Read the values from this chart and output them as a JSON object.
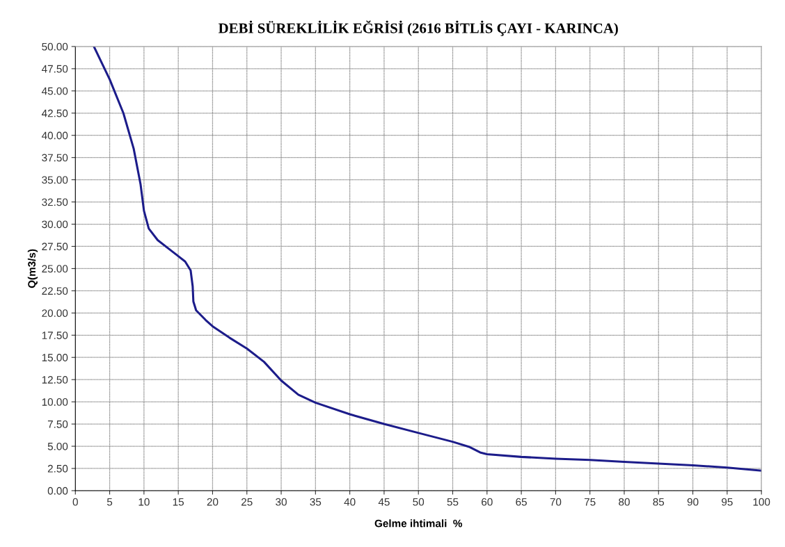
{
  "chart_data": {
    "type": "line",
    "title": "DEBİ SÜREKLİLİK EĞRİSİ (2616 BİTLİS ÇAYI - KARINCA)",
    "xlabel": "Gelme ihtimali  %",
    "ylabel": "Q(m3/s)",
    "x": [
      2.7,
      5,
      7,
      8.5,
      9.5,
      10,
      10.7,
      12,
      14,
      16,
      16.8,
      17.1,
      17.2,
      17.6,
      19,
      20,
      22.5,
      25,
      27.5,
      30,
      32.5,
      35,
      40,
      45,
      50,
      55,
      57.5,
      59,
      60,
      65,
      70,
      75,
      80,
      85,
      90,
      95,
      100
    ],
    "series": [
      {
        "color": "#1c1c8a",
        "values": [
          50,
          46.3,
          42.5,
          38.5,
          34.5,
          31.5,
          29.5,
          28.2,
          27,
          25.8,
          24.8,
          23,
          21.3,
          20.3,
          19.2,
          18.5,
          17.2,
          16,
          14.5,
          12.4,
          10.8,
          9.9,
          8.6,
          7.5,
          6.5,
          5.5,
          4.9,
          4.3,
          4.1,
          3.8,
          3.6,
          3.45,
          3.25,
          3.05,
          2.85,
          2.6,
          2.25
        ]
      }
    ],
    "xlim": [
      0,
      100
    ],
    "xticks": [
      0,
      5,
      10,
      15,
      20,
      25,
      30,
      35,
      40,
      45,
      50,
      55,
      60,
      65,
      70,
      75,
      80,
      85,
      90,
      95,
      100
    ],
    "ylim": [
      0,
      50
    ],
    "yticks": [
      {
        "value": 0,
        "label": "0.00"
      },
      {
        "value": 2.5,
        "label": "2.50"
      },
      {
        "value": 5,
        "label": "5.00"
      },
      {
        "value": 7.5,
        "label": "7.50"
      },
      {
        "value": 10,
        "label": "10.00"
      },
      {
        "value": 12.5,
        "label": "12.50"
      },
      {
        "value": 15,
        "label": "15.00"
      },
      {
        "value": 17.5,
        "label": "17.50"
      },
      {
        "value": 20,
        "label": "20.00"
      },
      {
        "value": 22.5,
        "label": "22.50"
      },
      {
        "value": 25,
        "label": "25.00"
      },
      {
        "value": 27.5,
        "label": "27.50"
      },
      {
        "value": 30,
        "label": "30.00"
      },
      {
        "value": 32.5,
        "label": "32.50"
      },
      {
        "value": 35,
        "label": "35.00"
      },
      {
        "value": 37.5,
        "label": "37.50"
      },
      {
        "value": 40,
        "label": "40.00"
      },
      {
        "value": 42.5,
        "label": "42.50"
      },
      {
        "value": 45,
        "label": "45.00"
      },
      {
        "value": 47.5,
        "label": "47.50"
      },
      {
        "value": 50,
        "label": "50.00"
      }
    ],
    "grid": true,
    "marker": "none",
    "line_style": "solid"
  }
}
